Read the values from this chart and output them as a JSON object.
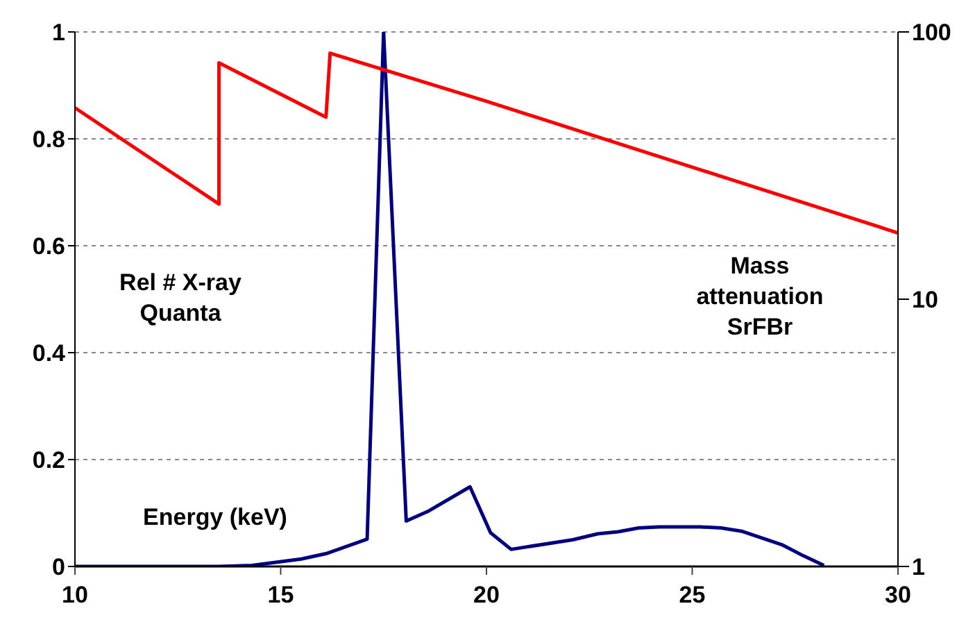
{
  "chart_data": {
    "type": "line",
    "xlabel": "Energy (keV)",
    "ylabel": "Rel # X-ray Quanta",
    "y2label": "Mass attenuation SrFBr",
    "xlim": [
      10,
      30
    ],
    "xticks": [
      10,
      15,
      20,
      25,
      30
    ],
    "ylim": [
      0,
      1
    ],
    "yticks": [
      0,
      0.2,
      0.4,
      0.6,
      0.8,
      1
    ],
    "y2lim": [
      1,
      100
    ],
    "y2ticks": [
      1,
      10,
      100
    ],
    "log": "y2",
    "grid": "y",
    "marker": "none",
    "line_style": "solid",
    "series": [
      {
        "color": "#000080",
        "x": [
          10,
          13.5,
          14.3,
          15.5,
          16.1,
          17.1,
          17.5,
          18.05,
          18.6,
          19.6,
          20.1,
          20.6,
          22.1,
          22.7,
          23.2,
          23.7,
          24.2,
          25.2,
          25.7,
          26.2,
          26.7,
          27.2,
          27.7,
          28.2
        ],
        "values": [
          0,
          0,
          0.002,
          0.014,
          0.024,
          0.051,
          1,
          0.085,
          0.104,
          0.149,
          0.063,
          0.032,
          0.05,
          0.061,
          0.065,
          0.072,
          0.074,
          0.074,
          0.072,
          0.066,
          0.053,
          0.04,
          0.02,
          0.002
        ]
      },
      {
        "color": "#ff0000",
        "axis": "y2",
        "x": [
          10,
          13.5,
          13.5,
          16.1,
          16.2,
          20,
          30
        ],
        "values": [
          52,
          22.7,
          76.6,
          48,
          83.3,
          55,
          17.7
        ]
      }
    ]
  }
}
